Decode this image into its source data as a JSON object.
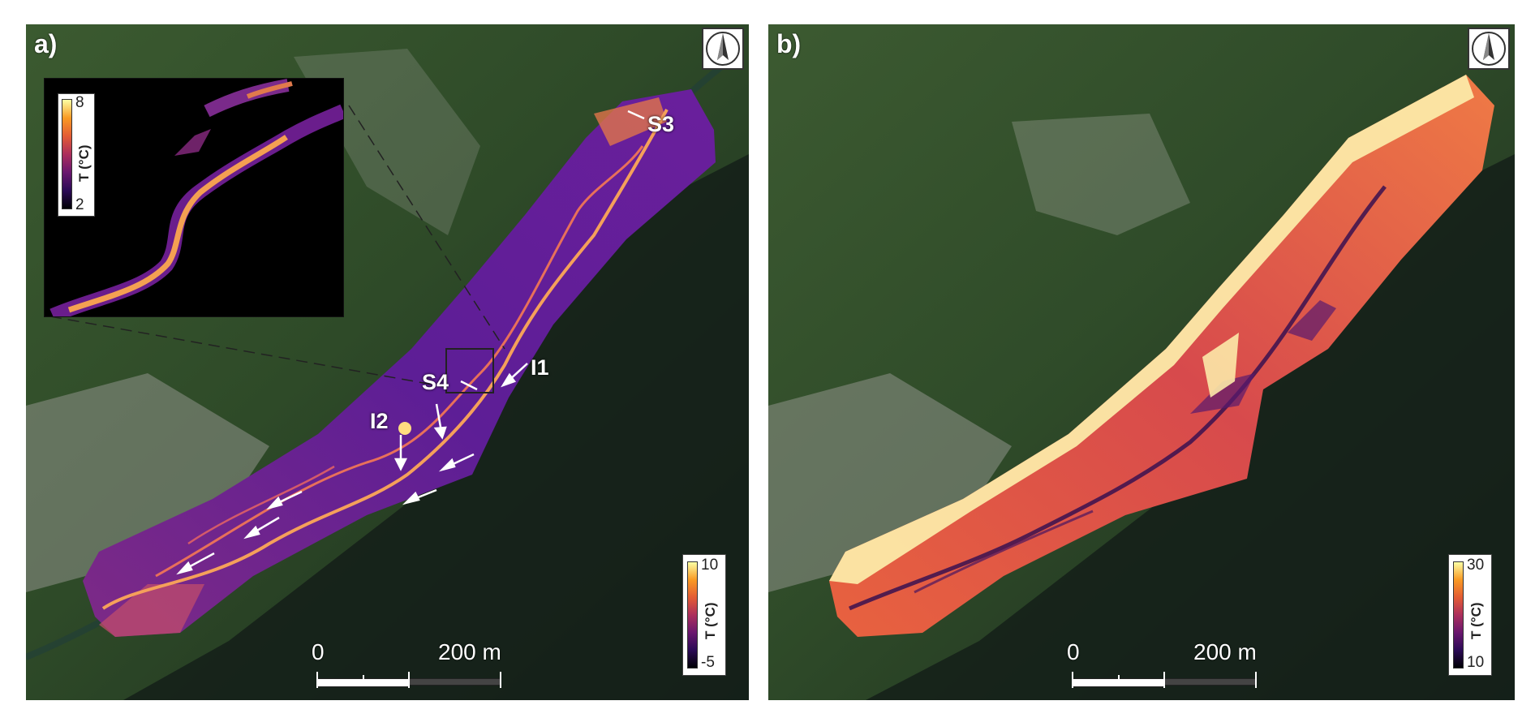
{
  "panels": {
    "a": {
      "label": "a)",
      "colorbar": {
        "max": "10",
        "min": "-5",
        "unit": "T (°C)"
      },
      "inset": {
        "colorbar": {
          "max": "8",
          "min": "2",
          "unit": "T (°C)"
        }
      },
      "scalebar": {
        "zero": "0",
        "distance": "200 m"
      },
      "site_labels": {
        "s3": "S3",
        "s4": "S4",
        "i1": "I1",
        "i2": "I2"
      }
    },
    "b": {
      "label": "b)",
      "colorbar": {
        "max": "30",
        "min": "10",
        "unit": "T (°C)"
      },
      "scalebar": {
        "zero": "0",
        "distance": "200 m"
      }
    }
  },
  "icons": {
    "north_arrow": "north-arrow-icon",
    "flow_arrow": "flow-arrow-icon"
  },
  "colors": {
    "forest": "#2e4a28",
    "shadow_forest": "#15201a",
    "rock": "#8f948a",
    "thermal_low": "#5b1a8f",
    "thermal_high": "#fcd27a"
  }
}
